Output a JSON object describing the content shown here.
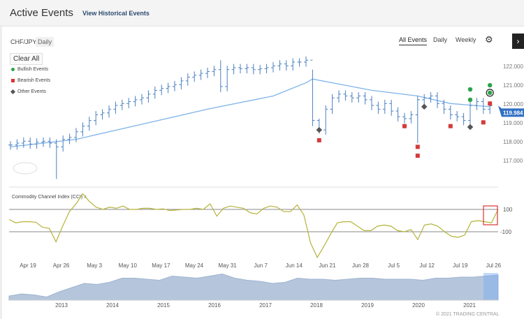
{
  "header": {
    "title": "Active Events",
    "historical_link": "View Historical Events"
  },
  "instrument": {
    "symbol": "CHF/JPY",
    "period": "Daily"
  },
  "legend": {
    "clear_all": "Clear All",
    "bullish": "Bullish Events",
    "bearish": "Bearish Events",
    "other": "Other Events"
  },
  "tabs": [
    "All Events",
    "Daily",
    "Weekly"
  ],
  "icons": {
    "settings": "gear-icon",
    "next": "chevron-right-icon"
  },
  "colors": {
    "bullish": "#2aa34a",
    "bearish": "#d33b3b",
    "other": "#555555",
    "price": "#4a7fc1",
    "ma": "#7fb3ea",
    "cci": "#b5b33a",
    "accent": "#2f6fc4"
  },
  "chart_data": {
    "type": "ohlc",
    "price_axis": {
      "ticks": [
        "122.000",
        "121.000",
        "120.000",
        "119.000",
        "118.000",
        "117.000"
      ],
      "values": [
        122,
        121,
        120,
        119,
        118,
        117
      ]
    },
    "last_price": "119.984",
    "closes": [
      117.9,
      118.0,
      118.1,
      117.95,
      118.05,
      118.1,
      118.0,
      117.8,
      118.2,
      118.3,
      118.6,
      118.9,
      119.2,
      119.5,
      119.6,
      119.8,
      120.0,
      120.1,
      120.2,
      120.3,
      120.4,
      120.6,
      120.8,
      120.9,
      121.0,
      121.1,
      121.3,
      121.5,
      121.6,
      121.7,
      121.8,
      121.9,
      121.0,
      121.9,
      122.0,
      121.95,
      122.0,
      121.9,
      121.95,
      122.0,
      122.1,
      122.2,
      122.1,
      122.3,
      122.3,
      122.4,
      119.2,
      118.7,
      119.8,
      120.4,
      120.6,
      120.5,
      120.4,
      120.5,
      120.3,
      120.0,
      119.8,
      120.1,
      119.7,
      119.4,
      119.3,
      119.5,
      120.3,
      120.4,
      120.5,
      120.1,
      119.8,
      119.5,
      119.4,
      119.2,
      120.0,
      120.2,
      119.8,
      119.98
    ],
    "wick_overrides": {
      "7": [
        118.2,
        116.1
      ],
      "32": [
        122.4,
        120.7
      ],
      "46": [
        121.9,
        118.9
      ],
      "47": [
        119.3,
        118.5
      ],
      "62": [
        120.5,
        118.0
      ],
      "70": [
        120.3,
        118.7
      ]
    },
    "moving_average": [
      [
        0,
        117.8
      ],
      [
        10,
        118.2
      ],
      [
        20,
        119.0
      ],
      [
        30,
        119.8
      ],
      [
        40,
        120.5
      ],
      [
        45,
        121.2
      ],
      [
        46,
        121.4
      ],
      [
        55,
        120.8
      ],
      [
        62,
        120.5
      ],
      [
        67,
        120.1
      ],
      [
        73,
        119.93
      ]
    ],
    "events": {
      "bullish": [
        [
          70,
          120.85
        ],
        [
          70,
          120.3
        ],
        [
          73,
          121.07
        ],
        [
          73,
          120.67
        ]
      ],
      "bearish": [
        [
          47,
          118.15
        ],
        [
          60,
          118.9
        ],
        [
          62,
          117.8
        ],
        [
          62,
          117.33
        ],
        [
          67,
          118.9
        ],
        [
          72,
          119.1
        ],
        [
          73,
          120.1
        ]
      ],
      "other": [
        [
          47,
          118.7
        ],
        [
          63,
          119.93
        ],
        [
          70,
          118.85
        ]
      ]
    },
    "date_labels": [
      "Apr 19",
      "Apr 26",
      "May 3",
      "May 10",
      "May 17",
      "May 24",
      "May 31",
      "Jun 7",
      "Jun 14",
      "Jun 21",
      "Jun 28",
      "Jul 5",
      "Jul 12",
      "Jul 19",
      "Jul 26"
    ],
    "cci": {
      "title": "Commodity Channel Index (CCI) x",
      "levels": [
        "100",
        "-100"
      ],
      "values": [
        10,
        -20,
        -10,
        -10,
        -15,
        -60,
        -70,
        -190,
        -50,
        80,
        150,
        240,
        170,
        120,
        100,
        120,
        110,
        130,
        100,
        100,
        110,
        110,
        100,
        105,
        90,
        95,
        100,
        100,
        110,
        100,
        150,
        40,
        110,
        130,
        120,
        110,
        70,
        60,
        110,
        130,
        120,
        80,
        80,
        140,
        50,
        -200,
        -330,
        -230,
        -120,
        -20,
        -10,
        -10,
        -50,
        -90,
        -90,
        -50,
        -40,
        -50,
        -90,
        -100,
        -80,
        -170,
        -40,
        -30,
        -50,
        -100,
        -140,
        -150,
        -130,
        -10,
        0,
        -10,
        -20,
        100
      ]
    },
    "navigator": {
      "years": [
        "2013",
        "2014",
        "2015",
        "2016",
        "2017",
        "2018",
        "2019",
        "2020",
        "2021"
      ],
      "values": [
        114,
        116,
        115,
        113,
        118,
        122,
        126,
        125,
        127,
        131,
        131,
        130,
        129,
        133,
        132,
        131,
        133,
        135,
        131,
        129,
        128,
        126,
        127,
        131,
        130,
        130,
        129,
        130,
        131,
        131,
        130,
        130,
        130,
        129,
        131,
        131,
        132,
        132,
        133,
        134
      ]
    }
  },
  "copyright": "© 2021 TRADING CENTRAL"
}
